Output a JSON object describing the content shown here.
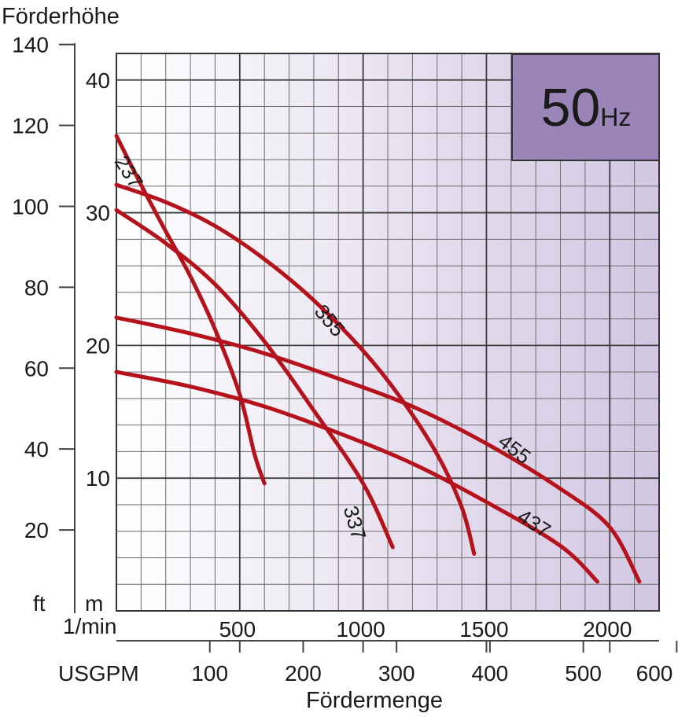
{
  "chart_data": {
    "type": "line",
    "title": "",
    "ylabel": "Förderhöhe",
    "xlabel": "Fördermenge",
    "badge": {
      "value": "50",
      "unit": "Hz",
      "color": "#9b84b8"
    },
    "units": {
      "ft": "ft",
      "m": "m",
      "lmin": "1/min",
      "usgpm": "USGPM"
    },
    "x_range_lmin": [
      0,
      2200
    ],
    "y_range_m": [
      0,
      42
    ],
    "grid": true,
    "curve_color": "#b5121b",
    "y_ticks_ft": [
      {
        "value": 20,
        "label": "20"
      },
      {
        "value": 40,
        "label": "40"
      },
      {
        "value": 60,
        "label": "60"
      },
      {
        "value": 80,
        "label": "80"
      },
      {
        "value": 100,
        "label": "100"
      },
      {
        "value": 120,
        "label": "120"
      },
      {
        "value": 140,
        "label": "140"
      }
    ],
    "y_ticks_m": [
      {
        "value": 10,
        "label": "10"
      },
      {
        "value": 20,
        "label": "20"
      },
      {
        "value": 30,
        "label": "30"
      },
      {
        "value": 40,
        "label": "40"
      }
    ],
    "x_ticks_lmin": [
      {
        "value": 500,
        "label": "500"
      },
      {
        "value": 1000,
        "label": "1000"
      },
      {
        "value": 1500,
        "label": "1500"
      },
      {
        "value": 2000,
        "label": "2000"
      }
    ],
    "x_ticks_usgpm": [
      {
        "value": 100,
        "label": "100"
      },
      {
        "value": 200,
        "label": "200"
      },
      {
        "value": 300,
        "label": "300"
      },
      {
        "value": 400,
        "label": "400"
      },
      {
        "value": 500,
        "label": "500"
      },
      {
        "value": 600,
        "label": "600"
      }
    ],
    "series": [
      {
        "name": "237",
        "points": [
          [
            0,
            35.8
          ],
          [
            100,
            32.1
          ],
          [
            200,
            28.6
          ],
          [
            300,
            25.2
          ],
          [
            400,
            21.2
          ],
          [
            500,
            16.3
          ],
          [
            560,
            11.8
          ],
          [
            600,
            9.6
          ]
        ],
        "label_at": [
          45,
          33
        ],
        "label_angle": 58
      },
      {
        "name": "337",
        "points": [
          [
            0,
            30.2
          ],
          [
            200,
            27.7
          ],
          [
            400,
            24.6
          ],
          [
            600,
            20.3
          ],
          [
            800,
            15.1
          ],
          [
            1000,
            9.6
          ],
          [
            1120,
            4.8
          ]
        ],
        "label_at": [
          960,
          6.6
        ],
        "label_angle": 74
      },
      {
        "name": "355",
        "points": [
          [
            0,
            32.1
          ],
          [
            200,
            30.8
          ],
          [
            400,
            29.0
          ],
          [
            600,
            26.5
          ],
          [
            800,
            23.4
          ],
          [
            1000,
            19.6
          ],
          [
            1150,
            16.1
          ],
          [
            1300,
            11.8
          ],
          [
            1400,
            7.8
          ],
          [
            1450,
            4.3
          ]
        ],
        "label_at": [
          860,
          21.8
        ],
        "label_angle": 50
      },
      {
        "name": "437",
        "points": [
          [
            0,
            18.0
          ],
          [
            300,
            16.9
          ],
          [
            600,
            15.4
          ],
          [
            900,
            13.4
          ],
          [
            1200,
            11.1
          ],
          [
            1500,
            8.2
          ],
          [
            1800,
            4.9
          ],
          [
            1950,
            2.2
          ]
        ],
        "label_at": [
          1690,
          6.5
        ],
        "label_angle": 33
      },
      {
        "name": "455",
        "points": [
          [
            0,
            22.1
          ],
          [
            300,
            20.9
          ],
          [
            600,
            19.4
          ],
          [
            900,
            17.5
          ],
          [
            1200,
            15.4
          ],
          [
            1500,
            12.6
          ],
          [
            1800,
            9.2
          ],
          [
            2000,
            6.3
          ],
          [
            2120,
            2.2
          ]
        ],
        "label_at": [
          1610,
          12.1
        ],
        "label_angle": 38
      }
    ]
  }
}
